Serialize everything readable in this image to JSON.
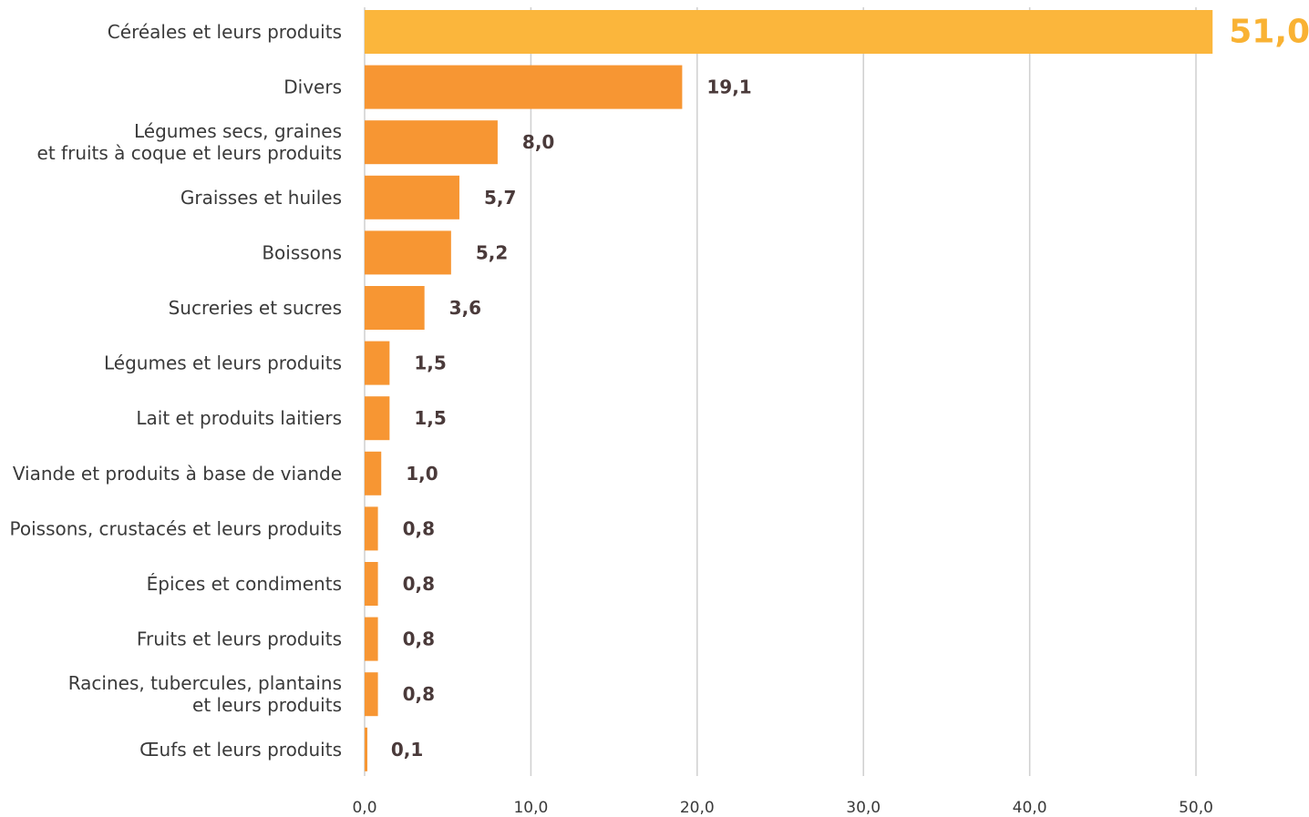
{
  "chart_data": {
    "type": "bar",
    "orientation": "horizontal",
    "categories": [
      [
        "Céréales et leurs produits"
      ],
      [
        "Divers"
      ],
      [
        "Légumes secs, graines",
        "et fruits à coque et leurs produits"
      ],
      [
        "Graisses et huiles"
      ],
      [
        "Boissons"
      ],
      [
        "Sucreries et sucres"
      ],
      [
        "Légumes et leurs produits"
      ],
      [
        "Lait et produits laitiers"
      ],
      [
        "Viande et produits à base de viande"
      ],
      [
        "Poissons, crustacés et leurs produits"
      ],
      [
        "Épices et condiments"
      ],
      [
        "Fruits et leurs produits"
      ],
      [
        "Racines, tubercules, plantains",
        "et leurs produits"
      ],
      [
        "Œufs et leurs produits"
      ]
    ],
    "values": [
      51.0,
      19.1,
      8.0,
      5.7,
      5.2,
      3.6,
      1.5,
      1.5,
      1.0,
      0.8,
      0.8,
      0.8,
      0.8,
      0.1
    ],
    "value_labels": [
      "51,0",
      "19,1",
      "8,0",
      "5,7",
      "5,2",
      "3,6",
      "1,5",
      "1,5",
      "1,0",
      "0,8",
      "0,8",
      "0,8",
      "0,8",
      "0,1"
    ],
    "xlim": [
      0,
      50
    ],
    "xticks": [
      0,
      10,
      20,
      30,
      40,
      50
    ],
    "xtick_labels": [
      "0,0",
      "10,0",
      "20,0",
      "30,0",
      "40,0",
      "50,0"
    ],
    "grid": true,
    "title": "",
    "xlabel": "",
    "ylabel": "",
    "colors": {
      "highlight_bar": "#fbb63c",
      "bar": "#f79633",
      "highlight_label": "#f9b233",
      "value_label": "#4a3a3a",
      "grid": "#cfcfcf"
    }
  }
}
